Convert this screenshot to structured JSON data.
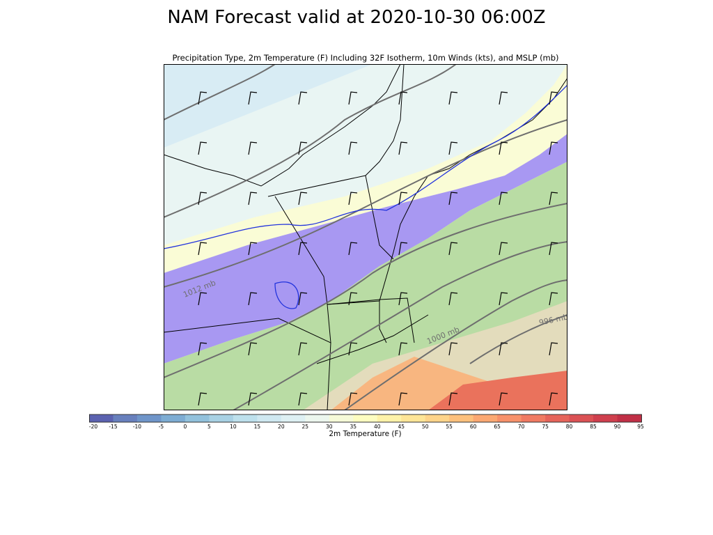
{
  "title": "NAM Forecast valid at 2020-10-30 06:00Z",
  "subtitle": "Precipitation Type, 2m Temperature (F) Including 32F Isotherm, 10m Winds (kts), and MSLP (mb)",
  "map": {
    "isobar_labels": [
      "1012 mb",
      "1000 mb",
      "996 mb"
    ],
    "colors": {
      "cold": "#d8ecf4",
      "cool": "#e9f5f3",
      "mild": "#fafcd6",
      "snow": "#a898f2",
      "warm": "#b9dca4",
      "tan": "#e3dcbc",
      "orange": "#f8b680",
      "red": "#ea725c",
      "isotherm": "#2233dd",
      "isobar": "#6e6e6e"
    }
  },
  "colorbar": {
    "label": "2m Temperature (F)",
    "ticks": [
      "-20",
      "-15",
      "-10",
      "-5",
      "0",
      "5",
      "10",
      "15",
      "20",
      "25",
      "30",
      "35",
      "40",
      "45",
      "50",
      "55",
      "60",
      "65",
      "70",
      "75",
      "80",
      "85",
      "90",
      "95"
    ],
    "colors": [
      "#5b62b0",
      "#6880bd",
      "#6f95c9",
      "#7dacd3",
      "#92c1dc",
      "#a8d1e4",
      "#bde0ec",
      "#cfe8f1",
      "#def0f3",
      "#ecf6ee",
      "#f6fad8",
      "#fdfdc0",
      "#fef2a8",
      "#fee597",
      "#fed48a",
      "#fdc07c",
      "#fba872",
      "#f7916a",
      "#f07a62",
      "#e6645a",
      "#db5154",
      "#cf3f4d",
      "#c02f46"
    ]
  }
}
